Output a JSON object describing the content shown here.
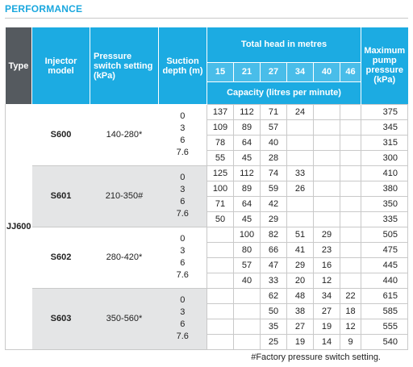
{
  "section_title": "PERFORMANCE",
  "headers": {
    "type": "Type",
    "injector_model": [
      "Injector",
      "model"
    ],
    "pressure_switch": [
      "Pressure",
      "switch setting",
      "(kPa)"
    ],
    "suction_depth": [
      "Suction",
      "depth (m)"
    ],
    "total_head": "Total head in metres",
    "heads": [
      "15",
      "21",
      "27",
      "34",
      "40",
      "46"
    ],
    "capacity": "Capacity (litres per minute)",
    "max_pressure": [
      "Maximum",
      "pump",
      "pressure",
      "(kPa)"
    ]
  },
  "type_value": "JJ600",
  "groups": [
    {
      "model": "S600",
      "setting": "140-280*",
      "suction": [
        "0",
        "3",
        "6",
        "7.6"
      ],
      "rows": [
        {
          "cap": [
            "137",
            "112",
            "71",
            "24",
            "",
            ""
          ],
          "pressure": "375"
        },
        {
          "cap": [
            "109",
            "89",
            "57",
            "",
            "",
            ""
          ],
          "pressure": "345"
        },
        {
          "cap": [
            "78",
            "64",
            "40",
            "",
            "",
            ""
          ],
          "pressure": "315"
        },
        {
          "cap": [
            "55",
            "45",
            "28",
            "",
            "",
            ""
          ],
          "pressure": "300"
        }
      ]
    },
    {
      "model": "S601",
      "setting": "210-350#",
      "suction": [
        "0",
        "3",
        "6",
        "7.6"
      ],
      "rows": [
        {
          "cap": [
            "125",
            "112",
            "74",
            "33",
            "",
            ""
          ],
          "pressure": "410"
        },
        {
          "cap": [
            "100",
            "89",
            "59",
            "26",
            "",
            ""
          ],
          "pressure": "380"
        },
        {
          "cap": [
            "71",
            "64",
            "42",
            "",
            "",
            ""
          ],
          "pressure": "350"
        },
        {
          "cap": [
            "50",
            "45",
            "29",
            "",
            "",
            ""
          ],
          "pressure": "335"
        }
      ]
    },
    {
      "model": "S602",
      "setting": "280-420*",
      "suction": [
        "0",
        "3",
        "6",
        "7.6"
      ],
      "rows": [
        {
          "cap": [
            "",
            "100",
            "82",
            "51",
            "29",
            ""
          ],
          "pressure": "505"
        },
        {
          "cap": [
            "",
            "80",
            "66",
            "41",
            "23",
            ""
          ],
          "pressure": "475"
        },
        {
          "cap": [
            "",
            "57",
            "47",
            "29",
            "16",
            ""
          ],
          "pressure": "445"
        },
        {
          "cap": [
            "",
            "40",
            "33",
            "20",
            "12",
            ""
          ],
          "pressure": "440"
        }
      ]
    },
    {
      "model": "S603",
      "setting": "350-560*",
      "suction": [
        "0",
        "3",
        "6",
        "7.6"
      ],
      "rows": [
        {
          "cap": [
            "",
            "",
            "62",
            "48",
            "34",
            "22"
          ],
          "pressure": "615"
        },
        {
          "cap": [
            "",
            "",
            "50",
            "38",
            "27",
            "18"
          ],
          "pressure": "585"
        },
        {
          "cap": [
            "",
            "",
            "35",
            "27",
            "19",
            "12"
          ],
          "pressure": "555"
        },
        {
          "cap": [
            "",
            "",
            "25",
            "19",
            "14",
            "9"
          ],
          "pressure": "540"
        }
      ]
    }
  ],
  "footnote": "#Factory pressure switch setting."
}
